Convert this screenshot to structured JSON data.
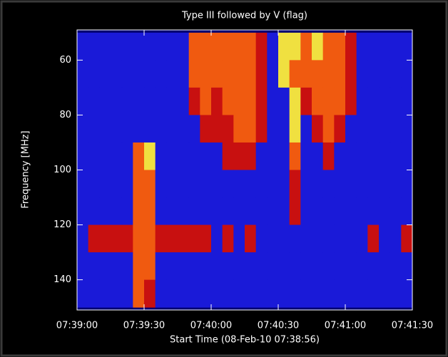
{
  "chart_data": {
    "type": "heatmap",
    "title": "Type III followed by V (flag)",
    "xlabel": "Start Time (08-Feb-10 07:38:56)",
    "ylabel": "Frequency [MHz]",
    "xlim": [
      0,
      150
    ],
    "xticks": [
      {
        "value": 0,
        "label": "07:39:00"
      },
      {
        "value": 30,
        "label": "07:39:30"
      },
      {
        "value": 60,
        "label": "07:40:00"
      },
      {
        "value": 90,
        "label": "07:40:30"
      },
      {
        "value": 120,
        "label": "07:41:00"
      },
      {
        "value": 150,
        "label": "07:41:30"
      }
    ],
    "ylim": [
      151,
      49
    ],
    "yticks": [
      60,
      80,
      100,
      120,
      140
    ],
    "xbins": [
      0,
      5,
      10,
      15,
      20,
      25,
      30,
      35,
      40,
      45,
      50,
      55,
      60,
      65,
      70,
      75,
      80,
      85,
      90,
      95,
      100,
      105,
      110,
      115,
      120,
      125,
      130,
      135,
      140,
      145,
      150
    ],
    "ybins": [
      50,
      60,
      70,
      80,
      90,
      100,
      110,
      120,
      130,
      140,
      150
    ],
    "colors": [
      "#000070",
      "#1a1ad8",
      "#c81010",
      "#f05a10",
      "#f0e040"
    ],
    "z": [
      [
        1,
        1,
        1,
        1,
        1,
        1,
        1,
        1,
        1,
        1,
        3,
        3,
        3,
        3,
        3,
        3,
        2,
        1,
        4,
        4,
        3,
        4,
        3,
        3,
        2,
        1,
        1,
        1,
        1,
        1
      ],
      [
        1,
        1,
        1,
        1,
        1,
        1,
        1,
        1,
        1,
        1,
        3,
        3,
        3,
        3,
        3,
        3,
        2,
        1,
        4,
        3,
        3,
        3,
        3,
        3,
        2,
        1,
        1,
        1,
        1,
        1
      ],
      [
        1,
        1,
        1,
        1,
        1,
        1,
        1,
        1,
        1,
        1,
        2,
        3,
        2,
        3,
        3,
        3,
        2,
        1,
        1,
        4,
        2,
        3,
        3,
        3,
        2,
        1,
        1,
        1,
        1,
        1
      ],
      [
        1,
        1,
        1,
        1,
        1,
        1,
        1,
        1,
        1,
        1,
        1,
        2,
        2,
        2,
        3,
        3,
        2,
        1,
        1,
        4,
        1,
        2,
        3,
        2,
        1,
        1,
        1,
        1,
        1,
        1
      ],
      [
        1,
        1,
        1,
        1,
        1,
        3,
        4,
        1,
        1,
        1,
        1,
        1,
        1,
        2,
        2,
        2,
        1,
        1,
        1,
        3,
        1,
        1,
        2,
        1,
        1,
        1,
        1,
        1,
        1,
        1
      ],
      [
        1,
        1,
        1,
        1,
        1,
        3,
        3,
        1,
        1,
        1,
        1,
        1,
        1,
        1,
        1,
        1,
        1,
        1,
        1,
        2,
        1,
        1,
        1,
        1,
        1,
        1,
        1,
        1,
        1,
        1
      ],
      [
        1,
        1,
        1,
        1,
        1,
        3,
        3,
        1,
        1,
        1,
        1,
        1,
        1,
        1,
        1,
        1,
        1,
        1,
        1,
        2,
        1,
        1,
        1,
        1,
        1,
        1,
        1,
        1,
        1,
        1
      ],
      [
        1,
        2,
        2,
        2,
        2,
        3,
        3,
        2,
        2,
        2,
        2,
        2,
        1,
        2,
        1,
        2,
        1,
        1,
        1,
        1,
        1,
        1,
        1,
        1,
        1,
        1,
        2,
        1,
        1,
        2
      ],
      [
        1,
        1,
        1,
        1,
        1,
        3,
        3,
        1,
        1,
        1,
        1,
        1,
        1,
        1,
        1,
        1,
        1,
        1,
        1,
        1,
        1,
        1,
        1,
        1,
        1,
        1,
        1,
        1,
        1,
        1
      ],
      [
        1,
        1,
        1,
        1,
        1,
        3,
        2,
        1,
        1,
        1,
        1,
        1,
        1,
        1,
        1,
        1,
        1,
        1,
        1,
        1,
        1,
        1,
        1,
        1,
        1,
        1,
        1,
        1,
        1,
        1
      ]
    ]
  }
}
